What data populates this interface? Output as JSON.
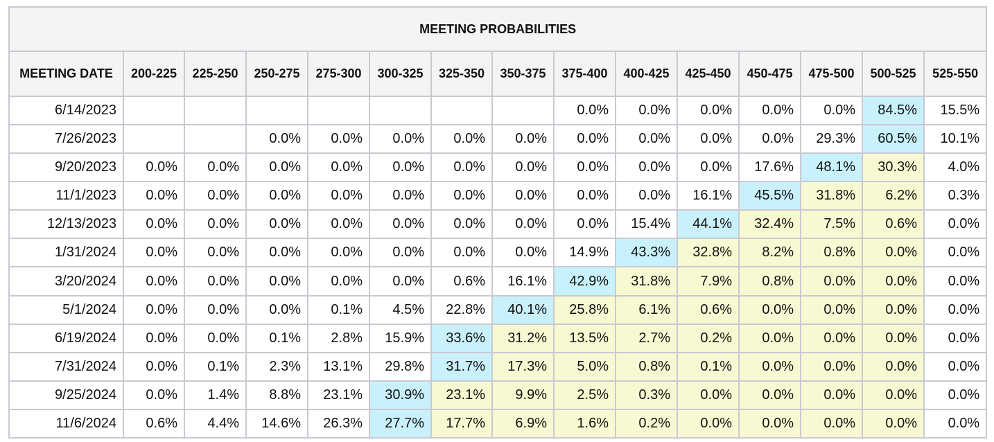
{
  "title": "MEETING PROBABILITIES",
  "colors": {
    "highlight_max": "#c9f1fb",
    "highlight_above_current": "#f8f8d2",
    "border": "#c9c9d2",
    "header_bg": "#f4f4f4"
  },
  "chart_data": {
    "type": "table",
    "title": "MEETING PROBABILITIES",
    "columns": [
      "MEETING DATE",
      "200-225",
      "225-250",
      "250-275",
      "275-300",
      "300-325",
      "325-350",
      "350-375",
      "375-400",
      "400-425",
      "425-450",
      "450-475",
      "475-500",
      "500-525",
      "525-550"
    ],
    "rows": [
      {
        "date": "6/14/2023",
        "values": [
          "",
          "",
          "",
          "",
          "",
          "",
          "",
          "0.0%",
          "0.0%",
          "0.0%",
          "0.0%",
          "0.0%",
          "84.5%",
          "15.5%"
        ],
        "styles": [
          "w",
          "w",
          "w",
          "w",
          "w",
          "w",
          "w",
          "w",
          "w",
          "w",
          "w",
          "w",
          "b",
          "w"
        ]
      },
      {
        "date": "7/26/2023",
        "values": [
          "",
          "",
          "0.0%",
          "0.0%",
          "0.0%",
          "0.0%",
          "0.0%",
          "0.0%",
          "0.0%",
          "0.0%",
          "0.0%",
          "29.3%",
          "60.5%",
          "10.1%"
        ],
        "styles": [
          "w",
          "w",
          "w",
          "w",
          "w",
          "w",
          "w",
          "w",
          "w",
          "w",
          "w",
          "w",
          "b",
          "w"
        ]
      },
      {
        "date": "9/20/2023",
        "values": [
          "0.0%",
          "0.0%",
          "0.0%",
          "0.0%",
          "0.0%",
          "0.0%",
          "0.0%",
          "0.0%",
          "0.0%",
          "0.0%",
          "17.6%",
          "48.1%",
          "30.3%",
          "4.0%"
        ],
        "styles": [
          "w",
          "w",
          "w",
          "w",
          "w",
          "w",
          "w",
          "w",
          "w",
          "w",
          "w",
          "b",
          "y",
          "w"
        ]
      },
      {
        "date": "11/1/2023",
        "values": [
          "0.0%",
          "0.0%",
          "0.0%",
          "0.0%",
          "0.0%",
          "0.0%",
          "0.0%",
          "0.0%",
          "0.0%",
          "16.1%",
          "45.5%",
          "31.8%",
          "6.2%",
          "0.3%"
        ],
        "styles": [
          "w",
          "w",
          "w",
          "w",
          "w",
          "w",
          "w",
          "w",
          "w",
          "w",
          "b",
          "y",
          "y",
          "w"
        ]
      },
      {
        "date": "12/13/2023",
        "values": [
          "0.0%",
          "0.0%",
          "0.0%",
          "0.0%",
          "0.0%",
          "0.0%",
          "0.0%",
          "0.0%",
          "15.4%",
          "44.1%",
          "32.4%",
          "7.5%",
          "0.6%",
          "0.0%"
        ],
        "styles": [
          "w",
          "w",
          "w",
          "w",
          "w",
          "w",
          "w",
          "w",
          "w",
          "b",
          "y",
          "y",
          "y",
          "w"
        ]
      },
      {
        "date": "1/31/2024",
        "values": [
          "0.0%",
          "0.0%",
          "0.0%",
          "0.0%",
          "0.0%",
          "0.0%",
          "0.0%",
          "14.9%",
          "43.3%",
          "32.8%",
          "8.2%",
          "0.8%",
          "0.0%",
          "0.0%"
        ],
        "styles": [
          "w",
          "w",
          "w",
          "w",
          "w",
          "w",
          "w",
          "w",
          "b",
          "y",
          "y",
          "y",
          "y",
          "w"
        ]
      },
      {
        "date": "3/20/2024",
        "values": [
          "0.0%",
          "0.0%",
          "0.0%",
          "0.0%",
          "0.0%",
          "0.6%",
          "16.1%",
          "42.9%",
          "31.8%",
          "7.9%",
          "0.8%",
          "0.0%",
          "0.0%",
          "0.0%"
        ],
        "styles": [
          "w",
          "w",
          "w",
          "w",
          "w",
          "w",
          "w",
          "b",
          "y",
          "y",
          "y",
          "y",
          "y",
          "w"
        ]
      },
      {
        "date": "5/1/2024",
        "values": [
          "0.0%",
          "0.0%",
          "0.0%",
          "0.1%",
          "4.5%",
          "22.8%",
          "40.1%",
          "25.8%",
          "6.1%",
          "0.6%",
          "0.0%",
          "0.0%",
          "0.0%",
          "0.0%"
        ],
        "styles": [
          "w",
          "w",
          "w",
          "w",
          "w",
          "w",
          "b",
          "y",
          "y",
          "y",
          "y",
          "y",
          "y",
          "w"
        ]
      },
      {
        "date": "6/19/2024",
        "values": [
          "0.0%",
          "0.0%",
          "0.1%",
          "2.8%",
          "15.9%",
          "33.6%",
          "31.2%",
          "13.5%",
          "2.7%",
          "0.2%",
          "0.0%",
          "0.0%",
          "0.0%",
          "0.0%"
        ],
        "styles": [
          "w",
          "w",
          "w",
          "w",
          "w",
          "b",
          "y",
          "y",
          "y",
          "y",
          "y",
          "y",
          "y",
          "w"
        ]
      },
      {
        "date": "7/31/2024",
        "values": [
          "0.0%",
          "0.1%",
          "2.3%",
          "13.1%",
          "29.8%",
          "31.7%",
          "17.3%",
          "5.0%",
          "0.8%",
          "0.1%",
          "0.0%",
          "0.0%",
          "0.0%",
          "0.0%"
        ],
        "styles": [
          "w",
          "w",
          "w",
          "w",
          "w",
          "b",
          "y",
          "y",
          "y",
          "y",
          "y",
          "y",
          "y",
          "w"
        ]
      },
      {
        "date": "9/25/2024",
        "values": [
          "0.0%",
          "1.4%",
          "8.8%",
          "23.1%",
          "30.9%",
          "23.1%",
          "9.9%",
          "2.5%",
          "0.3%",
          "0.0%",
          "0.0%",
          "0.0%",
          "0.0%",
          "0.0%"
        ],
        "styles": [
          "w",
          "w",
          "w",
          "w",
          "b",
          "y",
          "y",
          "y",
          "y",
          "y",
          "y",
          "y",
          "y",
          "w"
        ]
      },
      {
        "date": "11/6/2024",
        "values": [
          "0.6%",
          "4.4%",
          "14.6%",
          "26.3%",
          "27.7%",
          "17.7%",
          "6.9%",
          "1.6%",
          "0.2%",
          "0.0%",
          "0.0%",
          "0.0%",
          "0.0%",
          "0.0%"
        ],
        "styles": [
          "w",
          "w",
          "w",
          "w",
          "b",
          "y",
          "y",
          "y",
          "y",
          "y",
          "y",
          "y",
          "y",
          "w"
        ]
      }
    ]
  }
}
